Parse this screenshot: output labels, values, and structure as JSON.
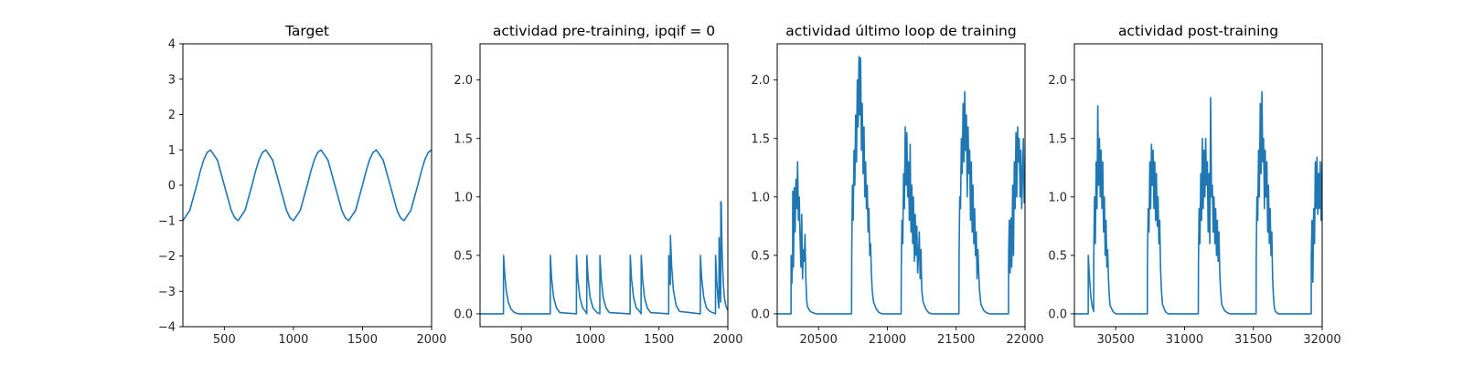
{
  "chart_data": [
    {
      "type": "line",
      "title": "Target",
      "xlabel": "",
      "ylabel": "",
      "xlim": [
        200,
        2000
      ],
      "ylim": [
        -4,
        4
      ],
      "xticks": [
        500,
        1000,
        1500,
        2000
      ],
      "xtick_labels": [
        "500",
        "1000",
        "1500",
        "2000"
      ],
      "yticks": [
        -4,
        -3,
        -2,
        -1,
        0,
        1,
        2,
        3,
        4
      ],
      "ytick_labels": [
        "−4",
        "−3",
        "−2",
        "−1",
        "0",
        "1",
        "2",
        "3",
        "4"
      ],
      "grid": false,
      "color": "#1f77b4",
      "series": [
        {
          "values": {
            "x": [
              200,
              250,
              300,
              325,
              350,
              375,
              400,
              450,
              500,
              550,
              575,
              600,
              650,
              700,
              725,
              750,
              775,
              800,
              850,
              900,
              950,
              975,
              1000,
              1050,
              1100,
              1125,
              1150,
              1175,
              1200,
              1250,
              1300,
              1350,
              1375,
              1400,
              1450,
              1500,
              1525,
              1550,
              1575,
              1600,
              1650,
              1700,
              1750,
              1775,
              1800,
              1850,
              1900,
              1925,
              1950,
              1975,
              2000
            ],
            "y": [
              -1.0,
              -0.71,
              0.0,
              0.38,
              0.71,
              0.92,
              1.0,
              0.71,
              0.0,
              -0.71,
              -0.92,
              -1.0,
              -0.71,
              0.0,
              0.38,
              0.71,
              0.92,
              1.0,
              0.71,
              0.0,
              -0.71,
              -0.92,
              -1.0,
              -0.71,
              0.0,
              0.38,
              0.71,
              0.92,
              1.0,
              0.71,
              0.0,
              -0.71,
              -0.92,
              -1.0,
              -0.71,
              0.0,
              0.38,
              0.71,
              0.92,
              1.0,
              0.71,
              0.0,
              -0.71,
              -0.92,
              -1.0,
              -0.71,
              0.0,
              0.38,
              0.71,
              0.92,
              1.0
            ]
          }
        }
      ]
    },
    {
      "type": "line",
      "title": "actividad pre-training, ipqif = 0",
      "xlabel": "",
      "ylabel": "",
      "xlim": [
        200,
        2000
      ],
      "ylim": [
        -0.11,
        2.31
      ],
      "xticks": [
        500,
        1000,
        1500,
        2000
      ],
      "xtick_labels": [
        "500",
        "1000",
        "1500",
        "2000"
      ],
      "yticks": [
        0.0,
        0.5,
        1.0,
        1.5,
        2.0
      ],
      "ytick_labels": [
        "0.0",
        "0.5",
        "1.0",
        "1.5",
        "2.0"
      ],
      "grid": false,
      "color": "#1f77b4",
      "series": [
        {
          "values": {
            "x": [
              200,
              370,
              371,
              380,
              390,
              405,
              425,
              450,
              480,
              710,
              711,
              720,
              735,
              755,
              780,
              900,
              901,
              910,
              925,
              945,
              965,
              975,
              976,
              985,
              1000,
              1020,
              1050,
              1070,
              1071,
              1080,
              1095,
              1115,
              1140,
              1290,
              1291,
              1300,
              1315,
              1335,
              1360,
              1370,
              1371,
              1380,
              1395,
              1415,
              1440,
              1570,
              1571,
              1578,
              1582,
              1583,
              1592,
              1605,
              1625,
              1650,
              1800,
              1801,
              1810,
              1825,
              1845,
              1870,
              1910,
              1911,
              1918,
              1930,
              1935,
              1936,
              1940,
              1945,
              1948,
              1949,
              1952,
              1957,
              1962,
              1967,
              1975,
              1985,
              2000
            ],
            "y": [
              0.0,
              0.0,
              0.5,
              0.33,
              0.2,
              0.1,
              0.04,
              0.01,
              0.0,
              0.0,
              0.5,
              0.3,
              0.14,
              0.05,
              0.01,
              0.0,
              0.5,
              0.3,
              0.14,
              0.05,
              0.02,
              0.0,
              0.5,
              0.3,
              0.14,
              0.05,
              0.01,
              0.0,
              0.5,
              0.3,
              0.14,
              0.05,
              0.01,
              0.0,
              0.5,
              0.3,
              0.14,
              0.05,
              0.02,
              0.0,
              0.5,
              0.3,
              0.14,
              0.05,
              0.01,
              0.0,
              0.5,
              0.3,
              0.25,
              0.67,
              0.4,
              0.2,
              0.07,
              0.02,
              0.0,
              0.5,
              0.3,
              0.14,
              0.05,
              0.02,
              0.0,
              0.5,
              0.3,
              0.1,
              0.05,
              0.65,
              0.4,
              0.2,
              0.1,
              0.96,
              0.95,
              0.6,
              0.4,
              0.26,
              0.14,
              0.07,
              0.03
            ]
          }
        }
      ]
    },
    {
      "type": "line",
      "title": "actividad último loop de training",
      "xlabel": "",
      "ylabel": "",
      "xlim": [
        20200,
        22000
      ],
      "ylim": [
        -0.11,
        2.31
      ],
      "xticks": [
        20500,
        21000,
        21500,
        22000
      ],
      "xtick_labels": [
        "20500",
        "21000",
        "21500",
        "22000"
      ],
      "yticks": [
        0.0,
        0.5,
        1.0,
        1.5,
        2.0
      ],
      "ytick_labels": [
        "0.0",
        "0.5",
        "1.0",
        "1.5",
        "2.0"
      ],
      "grid": false,
      "color": "#1f77b4",
      "series": [
        {
          "values": {
            "x": [
              20200,
              20300,
              20301,
              20306,
              20312,
              20313,
              20318,
              20324,
              20330,
              20336,
              20342,
              20348,
              20354,
              20360,
              20366,
              20372,
              20378,
              20384,
              20390,
              20396,
              20402,
              20408,
              20414,
              20420,
              20440,
              20460,
              20480,
              20500,
              20740,
              20741,
              20746,
              20752,
              20758,
              20764,
              20770,
              20776,
              20782,
              20788,
              20794,
              20800,
              20806,
              20812,
              20818,
              20824,
              20830,
              20836,
              20842,
              20848,
              20854,
              20860,
              20866,
              20872,
              20878,
              20884,
              20890,
              20900,
              20920,
              20940,
              20960,
              20980,
              21100,
              21101,
              21106,
              21112,
              21118,
              21124,
              21130,
              21136,
              21142,
              21148,
              21154,
              21160,
              21166,
              21172,
              21178,
              21184,
              21190,
              21196,
              21202,
              21208,
              21214,
              21220,
              21226,
              21232,
              21238,
              21244,
              21250,
              21260,
              21280,
              21300,
              21320,
              21340,
              21520,
              21521,
              21526,
              21532,
              21538,
              21544,
              21550,
              21556,
              21562,
              21568,
              21574,
              21580,
              21586,
              21592,
              21598,
              21604,
              21610,
              21616,
              21622,
              21628,
              21634,
              21640,
              21646,
              21652,
              21658,
              21664,
              21670,
              21680,
              21700,
              21720,
              21740,
              21760,
              21880,
              21881,
              21886,
              21892,
              21898,
              21904,
              21910,
              21916,
              21922,
              21928,
              21934,
              21940,
              21946,
              21952,
              21958,
              21964,
              21970,
              21976,
              21982,
              21988,
              21994,
              22000
            ],
            "y": [
              0.0,
              0.0,
              0.5,
              0.26,
              0.5,
              1.05,
              0.4,
              1.08,
              0.7,
              1.15,
              0.9,
              1.3,
              0.8,
              1.0,
              0.65,
              0.4,
              0.85,
              0.3,
              0.55,
              0.45,
              0.68,
              0.3,
              0.12,
              0.06,
              0.02,
              0.01,
              0.0,
              0.0,
              0.0,
              0.5,
              1.1,
              0.8,
              1.4,
              1.1,
              1.7,
              1.3,
              2.0,
              1.6,
              2.2,
              1.7,
              2.19,
              1.4,
              1.8,
              1.2,
              1.6,
              1.0,
              1.3,
              0.9,
              1.1,
              0.7,
              0.9,
              0.5,
              0.6,
              0.35,
              0.2,
              0.1,
              0.04,
              0.01,
              0.0,
              0.0,
              0.0,
              0.4,
              0.8,
              0.6,
              1.2,
              0.9,
              1.6,
              1.1,
              1.55,
              1.0,
              1.3,
              0.8,
              1.45,
              0.7,
              1.1,
              0.6,
              1.0,
              0.45,
              0.85,
              0.5,
              0.75,
              0.35,
              0.5,
              0.7,
              0.3,
              0.55,
              0.2,
              0.1,
              0.04,
              0.01,
              0.0,
              0.0,
              0.0,
              0.5,
              1.0,
              0.9,
              1.5,
              1.2,
              1.8,
              1.3,
              1.9,
              1.4,
              1.7,
              1.0,
              1.6,
              1.2,
              1.4,
              0.8,
              1.3,
              0.7,
              1.1,
              0.6,
              0.9,
              0.5,
              0.7,
              0.3,
              0.55,
              0.35,
              0.2,
              0.08,
              0.03,
              0.01,
              0.0,
              0.0,
              0.0,
              0.5,
              0.8,
              0.35,
              0.82,
              0.4,
              1.1,
              0.5,
              1.3,
              0.9,
              1.55,
              1.0,
              1.6,
              1.3,
              1.5,
              1.0,
              1.4,
              0.9,
              1.2,
              1.5,
              0.95,
              1.1
            ]
          }
        }
      ]
    },
    {
      "type": "line",
      "title": "actividad post-training",
      "xlabel": "",
      "ylabel": "",
      "xlim": [
        30200,
        32000
      ],
      "ylim": [
        -0.11,
        2.31
      ],
      "xticks": [
        30500,
        31000,
        31500,
        32000
      ],
      "xtick_labels": [
        "30500",
        "31000",
        "31500",
        "32000"
      ],
      "yticks": [
        0.0,
        0.5,
        1.0,
        1.5,
        2.0
      ],
      "ytick_labels": [
        "0.0",
        "0.5",
        "1.0",
        "1.5",
        "2.0"
      ],
      "grid": false,
      "color": "#1f77b4",
      "series": [
        {
          "values": {
            "x": [
              30200,
              30300,
              30301,
              30310,
              30320,
              30330,
              30340,
              30341,
              30346,
              30352,
              30358,
              30364,
              30370,
              30376,
              30382,
              30388,
              30394,
              30400,
              30406,
              30412,
              30418,
              30424,
              30430,
              30436,
              30442,
              30448,
              30454,
              30460,
              30480,
              30500,
              30520,
              30540,
              30730,
              30731,
              30736,
              30742,
              30748,
              30754,
              30760,
              30766,
              30772,
              30778,
              30784,
              30790,
              30796,
              30802,
              30808,
              30814,
              30820,
              30826,
              30832,
              30840,
              30860,
              30880,
              30900,
              31100,
              31101,
              31106,
              31112,
              31118,
              31124,
              31130,
              31136,
              31142,
              31148,
              31154,
              31160,
              31166,
              31172,
              31178,
              31184,
              31190,
              31196,
              31202,
              31208,
              31214,
              31220,
              31226,
              31232,
              31238,
              31244,
              31250,
              31256,
              31262,
              31270,
              31290,
              31310,
              31330,
              31350,
              31520,
              31521,
              31526,
              31532,
              31538,
              31544,
              31550,
              31556,
              31562,
              31568,
              31574,
              31580,
              31586,
              31592,
              31598,
              31604,
              31610,
              31616,
              31622,
              31628,
              31634,
              31640,
              31646,
              31652,
              31660,
              31680,
              31700,
              31720,
              31740,
              31920,
              31921,
              31926,
              31932,
              31938,
              31944,
              31950,
              31956,
              31962,
              31968,
              31974,
              31980,
              31986,
              31992,
              32000
            ],
            "y": [
              0.0,
              0.0,
              0.5,
              0.3,
              0.14,
              0.06,
              0.02,
              0.5,
              1.0,
              0.6,
              1.3,
              0.9,
              1.78,
              1.1,
              1.5,
              1.0,
              1.4,
              0.9,
              1.3,
              0.7,
              1.0,
              0.5,
              0.8,
              0.4,
              0.55,
              0.3,
              0.15,
              0.07,
              0.02,
              0.0,
              0.0,
              0.0,
              0.0,
              0.45,
              0.9,
              0.7,
              1.3,
              0.9,
              1.45,
              1.1,
              1.4,
              0.9,
              1.3,
              0.8,
              1.2,
              0.75,
              1.0,
              0.6,
              0.8,
              0.4,
              0.2,
              0.08,
              0.02,
              0.0,
              0.0,
              0.0,
              0.45,
              0.9,
              0.6,
              1.2,
              0.8,
              1.5,
              0.9,
              1.4,
              1.0,
              1.5,
              1.1,
              1.3,
              0.7,
              1.2,
              0.6,
              1.85,
              1.0,
              1.1,
              0.7,
              1.0,
              0.6,
              0.9,
              0.5,
              0.8,
              0.45,
              0.7,
              0.35,
              0.2,
              0.08,
              0.03,
              0.01,
              0.0,
              0.0,
              0.0,
              0.5,
              1.0,
              0.8,
              1.4,
              1.0,
              1.8,
              1.2,
              1.9,
              1.3,
              1.5,
              0.9,
              1.4,
              1.0,
              1.3,
              0.7,
              1.1,
              0.6,
              0.9,
              0.5,
              0.7,
              0.3,
              0.15,
              0.06,
              0.02,
              0.0,
              0.0,
              0.0,
              0.0,
              0.0,
              0.5,
              0.8,
              0.27,
              0.9,
              0.6,
              1.3,
              0.9,
              1.34,
              0.85,
              1.2,
              0.9,
              1.3,
              0.8,
              1.3
            ]
          }
        }
      ]
    }
  ]
}
